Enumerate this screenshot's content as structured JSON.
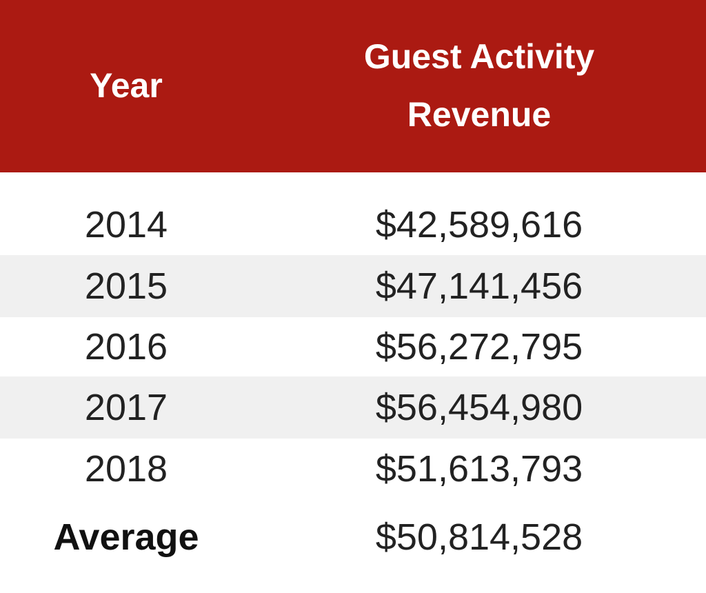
{
  "table": {
    "headers": [
      "Year",
      "Guest Activity\nRevenue"
    ],
    "header_lines": [
      "Guest Activity",
      "Revenue"
    ],
    "rows": [
      {
        "year": "2014",
        "revenue": "$42,589,616"
      },
      {
        "year": "2015",
        "revenue": "$47,141,456"
      },
      {
        "year": "2016",
        "revenue": "$56,272,795"
      },
      {
        "year": "2017",
        "revenue": "$56,454,980"
      },
      {
        "year": "2018",
        "revenue": "$51,613,793"
      }
    ],
    "footer": {
      "label": "Average",
      "revenue": "$50,814,528"
    },
    "colors": {
      "header_bg": "#ab1a12",
      "header_text": "#ffffff",
      "stripe": "#f0f0f0"
    }
  }
}
